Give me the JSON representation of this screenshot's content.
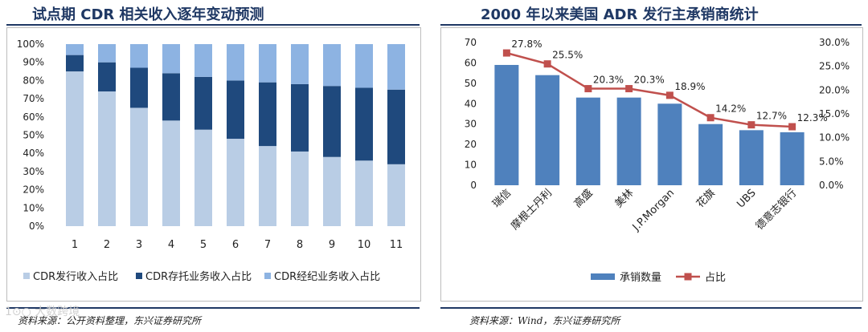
{
  "left": {
    "title": "试点期 CDR 相关收入逐年变动预测",
    "source": "资料来源：公开资料整理，东兴证券研究所",
    "chart_data": {
      "type": "bar",
      "stacked": true,
      "categories": [
        "1",
        "2",
        "3",
        "4",
        "5",
        "6",
        "7",
        "8",
        "9",
        "10",
        "11"
      ],
      "series": [
        {
          "name": "CDR发行收入占比",
          "color": "#b9cde5",
          "values": [
            85,
            74,
            65,
            58,
            53,
            48,
            44,
            41,
            38,
            36,
            34
          ]
        },
        {
          "name": "CDR存托业务收入占比",
          "color": "#1f497d",
          "values": [
            9,
            16,
            22,
            26,
            29,
            32,
            35,
            37,
            39,
            40,
            41
          ]
        },
        {
          "name": "CDR经纪业务收入占比",
          "color": "#8db3e2",
          "values": [
            6,
            10,
            13,
            16,
            18,
            20,
            21,
            22,
            23,
            24,
            25
          ]
        }
      ],
      "yticks": [
        "0%",
        "10%",
        "20%",
        "30%",
        "40%",
        "50%",
        "60%",
        "70%",
        "80%",
        "90%",
        "100%"
      ],
      "ylim": [
        0,
        100
      ],
      "legend_position": "bottom"
    }
  },
  "right": {
    "title": "2000 年以来美国 ADR 发行主承销商统计",
    "source": "资料来源：Wind，东兴证券研究所",
    "chart_data": {
      "type": "bar+line",
      "categories": [
        "瑞信",
        "摩根士丹利",
        "高盛",
        "美林",
        "J.P.Morgan",
        "花旗",
        "UBS",
        "德意志银行"
      ],
      "series": [
        {
          "name": "承销数量",
          "type": "bar",
          "color": "#4f81bd",
          "axis": "left",
          "values": [
            59,
            54,
            43,
            43,
            40,
            30,
            27,
            26
          ]
        },
        {
          "name": "占比",
          "type": "line",
          "color": "#c0504d",
          "axis": "right",
          "values": [
            27.8,
            25.5,
            20.3,
            20.3,
            18.9,
            14.2,
            12.7,
            12.3
          ],
          "labels": [
            "27.8%",
            "25.5%",
            "20.3%",
            "20.3%",
            "18.9%",
            "14.2%",
            "12.7%",
            "12.3%"
          ]
        }
      ],
      "y_left": {
        "ticks": [
          "0",
          "10",
          "20",
          "30",
          "40",
          "50",
          "60",
          "70"
        ],
        "lim": [
          0,
          70
        ]
      },
      "y_right": {
        "ticks": [
          "0.0%",
          "5.0%",
          "10.0%",
          "15.0%",
          "20.0%",
          "25.0%",
          "30.0%"
        ],
        "lim": [
          0,
          30
        ]
      },
      "legend_position": "bottom"
    }
  },
  "watermark": "1⊙○ 大数跨境"
}
